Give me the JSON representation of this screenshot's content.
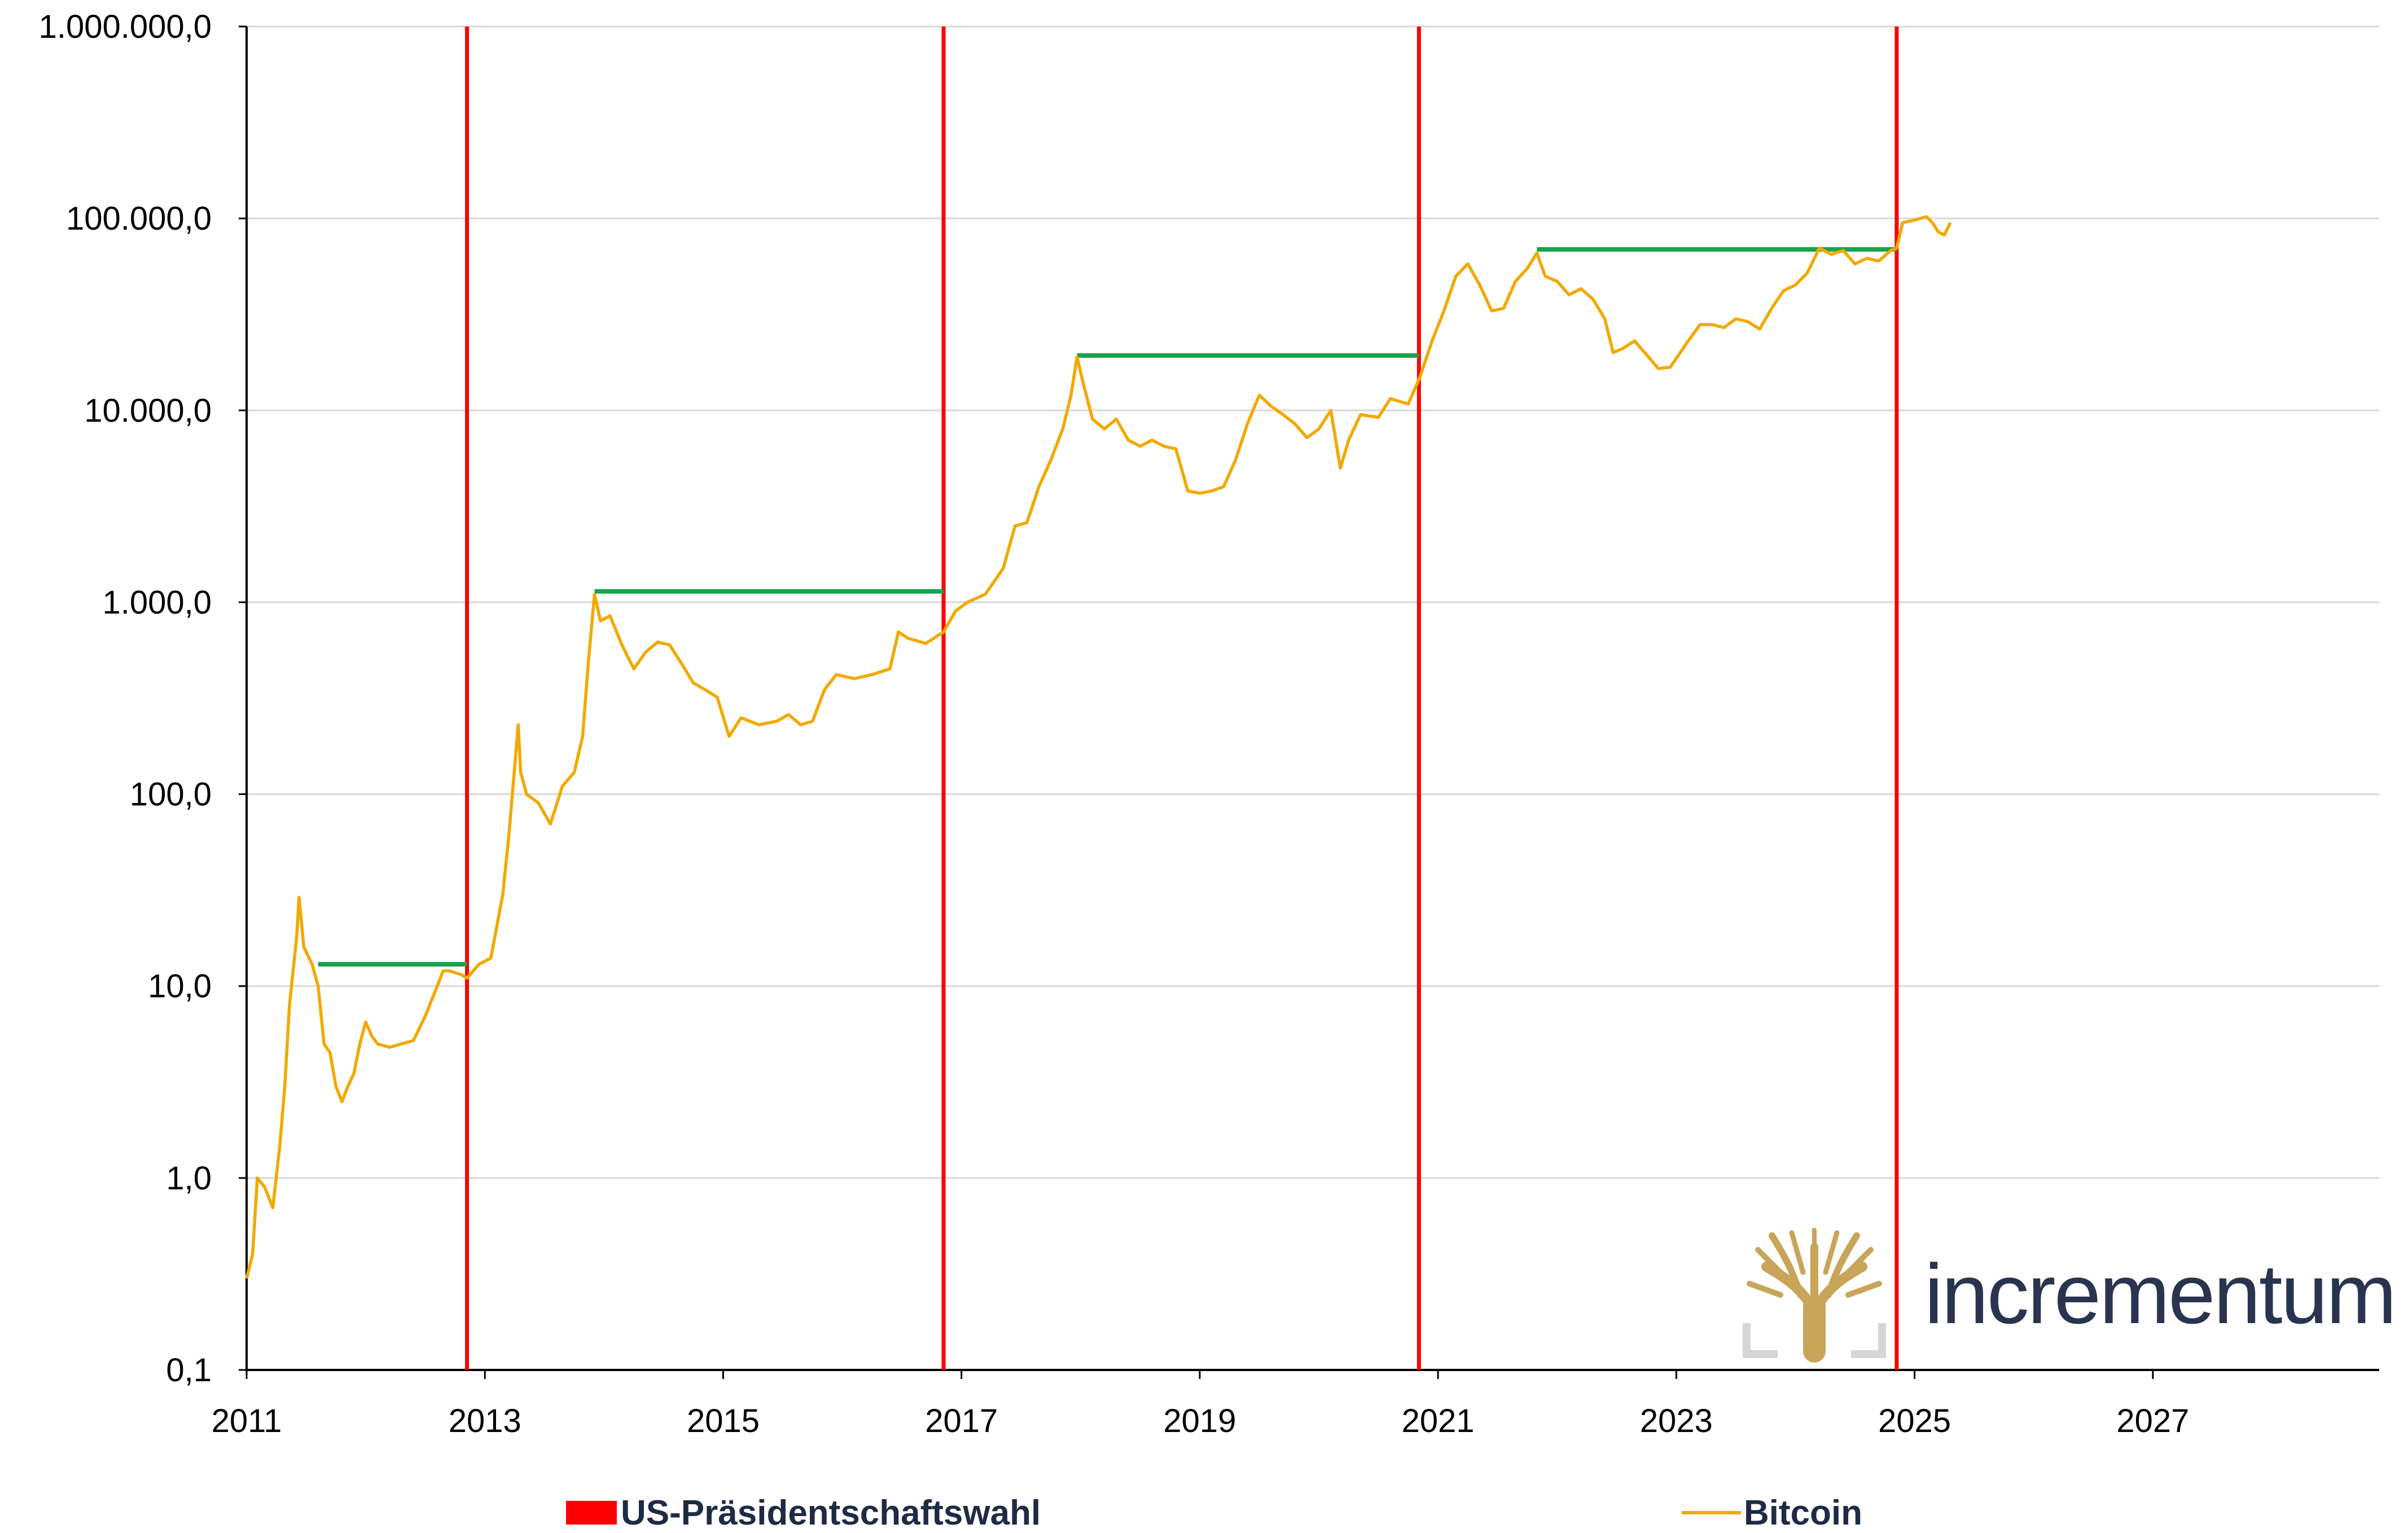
{
  "chart_data": {
    "type": "line",
    "y_scale": "log",
    "ylim": [
      0.1,
      1000000
    ],
    "xlim": [
      2011.0,
      2028.9
    ],
    "y_ticks": [
      {
        "value": 0.1,
        "label": "0,1"
      },
      {
        "value": 1,
        "label": "1,0"
      },
      {
        "value": 10,
        "label": "10,0"
      },
      {
        "value": 100,
        "label": "100,0"
      },
      {
        "value": 1000,
        "label": "1.000,0"
      },
      {
        "value": 10000,
        "label": "10.000,0"
      },
      {
        "value": 100000,
        "label": "100.000,0"
      },
      {
        "value": 1000000,
        "label": "1.000.000,0"
      }
    ],
    "x_ticks": [
      {
        "value": 2011,
        "label": "2011"
      },
      {
        "value": 2013,
        "label": "2013"
      },
      {
        "value": 2015,
        "label": "2015"
      },
      {
        "value": 2017,
        "label": "2017"
      },
      {
        "value": 2019,
        "label": "2019"
      },
      {
        "value": 2021,
        "label": "2021"
      },
      {
        "value": 2023,
        "label": "2023"
      },
      {
        "value": 2025,
        "label": "2025"
      },
      {
        "value": 2027,
        "label": "2027"
      }
    ],
    "grid": "horizontal",
    "series": [
      {
        "name": "Bitcoin",
        "color": "#f2a900",
        "points": [
          [
            2011.0,
            0.3
          ],
          [
            2011.05,
            0.4
          ],
          [
            2011.09,
            1.0
          ],
          [
            2011.15,
            0.9
          ],
          [
            2011.22,
            0.7
          ],
          [
            2011.28,
            1.5
          ],
          [
            2011.32,
            3.0
          ],
          [
            2011.36,
            8.0
          ],
          [
            2011.42,
            18.0
          ],
          [
            2011.44,
            29.0
          ],
          [
            2011.48,
            16.0
          ],
          [
            2011.55,
            13.0
          ],
          [
            2011.6,
            10.0
          ],
          [
            2011.65,
            5.0
          ],
          [
            2011.7,
            4.5
          ],
          [
            2011.75,
            3.0
          ],
          [
            2011.8,
            2.5
          ],
          [
            2011.85,
            3.0
          ],
          [
            2011.9,
            3.5
          ],
          [
            2011.95,
            5.0
          ],
          [
            2012.0,
            6.5
          ],
          [
            2012.05,
            5.5
          ],
          [
            2012.1,
            5.0
          ],
          [
            2012.2,
            4.8
          ],
          [
            2012.3,
            5.0
          ],
          [
            2012.4,
            5.2
          ],
          [
            2012.5,
            7.0
          ],
          [
            2012.6,
            10.0
          ],
          [
            2012.65,
            12.0
          ],
          [
            2012.7,
            12.0
          ],
          [
            2012.8,
            11.5
          ],
          [
            2012.85,
            11.0
          ],
          [
            2012.95,
            13.0
          ],
          [
            2013.05,
            14.0
          ],
          [
            2013.15,
            30.0
          ],
          [
            2013.2,
            60.0
          ],
          [
            2013.28,
            230.0
          ],
          [
            2013.3,
            130.0
          ],
          [
            2013.35,
            100.0
          ],
          [
            2013.45,
            90.0
          ],
          [
            2013.55,
            70.0
          ],
          [
            2013.65,
            110.0
          ],
          [
            2013.75,
            130.0
          ],
          [
            2013.82,
            200.0
          ],
          [
            2013.87,
            500.0
          ],
          [
            2013.92,
            1100.0
          ],
          [
            2013.97,
            800.0
          ],
          [
            2014.05,
            850.0
          ],
          [
            2014.15,
            600.0
          ],
          [
            2014.25,
            450.0
          ],
          [
            2014.35,
            550.0
          ],
          [
            2014.45,
            620.0
          ],
          [
            2014.55,
            600.0
          ],
          [
            2014.65,
            480.0
          ],
          [
            2014.75,
            380.0
          ],
          [
            2014.85,
            350.0
          ],
          [
            2014.95,
            320.0
          ],
          [
            2015.05,
            200.0
          ],
          [
            2015.15,
            250.0
          ],
          [
            2015.3,
            230.0
          ],
          [
            2015.45,
            240.0
          ],
          [
            2015.55,
            260.0
          ],
          [
            2015.65,
            230.0
          ],
          [
            2015.75,
            240.0
          ],
          [
            2015.85,
            350.0
          ],
          [
            2015.95,
            420.0
          ],
          [
            2016.1,
            400.0
          ],
          [
            2016.25,
            420.0
          ],
          [
            2016.4,
            450.0
          ],
          [
            2016.47,
            700.0
          ],
          [
            2016.55,
            650.0
          ],
          [
            2016.7,
            610.0
          ],
          [
            2016.85,
            700.0
          ],
          [
            2016.95,
            900.0
          ],
          [
            2017.05,
            1000.0
          ],
          [
            2017.2,
            1100.0
          ],
          [
            2017.35,
            1500.0
          ],
          [
            2017.45,
            2500.0
          ],
          [
            2017.55,
            2600.0
          ],
          [
            2017.65,
            4000.0
          ],
          [
            2017.75,
            5500.0
          ],
          [
            2017.85,
            8000.0
          ],
          [
            2017.92,
            12000.0
          ],
          [
            2017.97,
            19000.0
          ],
          [
            2018.02,
            14000.0
          ],
          [
            2018.1,
            9000.0
          ],
          [
            2018.2,
            8000.0
          ],
          [
            2018.3,
            9000.0
          ],
          [
            2018.4,
            7000.0
          ],
          [
            2018.5,
            6500.0
          ],
          [
            2018.6,
            7000.0
          ],
          [
            2018.7,
            6500.0
          ],
          [
            2018.8,
            6300.0
          ],
          [
            2018.9,
            3800.0
          ],
          [
            2019.0,
            3700.0
          ],
          [
            2019.1,
            3800.0
          ],
          [
            2019.2,
            4000.0
          ],
          [
            2019.3,
            5500.0
          ],
          [
            2019.4,
            8500.0
          ],
          [
            2019.5,
            12000.0
          ],
          [
            2019.6,
            10500.0
          ],
          [
            2019.7,
            9500.0
          ],
          [
            2019.8,
            8500.0
          ],
          [
            2019.9,
            7200.0
          ],
          [
            2020.0,
            8000.0
          ],
          [
            2020.1,
            10000.0
          ],
          [
            2020.18,
            5000.0
          ],
          [
            2020.25,
            7000.0
          ],
          [
            2020.35,
            9500.0
          ],
          [
            2020.5,
            9200.0
          ],
          [
            2020.6,
            11500.0
          ],
          [
            2020.75,
            10800.0
          ],
          [
            2020.85,
            15000.0
          ],
          [
            2020.95,
            23000.0
          ],
          [
            2021.05,
            33000.0
          ],
          [
            2021.15,
            50000.0
          ],
          [
            2021.25,
            58000.0
          ],
          [
            2021.35,
            45000.0
          ],
          [
            2021.45,
            33000.0
          ],
          [
            2021.55,
            34000.0
          ],
          [
            2021.65,
            47000.0
          ],
          [
            2021.75,
            55000.0
          ],
          [
            2021.83,
            66000.0
          ],
          [
            2021.9,
            50000.0
          ],
          [
            2022.0,
            47000.0
          ],
          [
            2022.1,
            40000.0
          ],
          [
            2022.2,
            43000.0
          ],
          [
            2022.3,
            38000.0
          ],
          [
            2022.4,
            30000.0
          ],
          [
            2022.47,
            20000.0
          ],
          [
            2022.55,
            21000.0
          ],
          [
            2022.65,
            23000.0
          ],
          [
            2022.75,
            19500.0
          ],
          [
            2022.85,
            16500.0
          ],
          [
            2022.95,
            16800.0
          ],
          [
            2023.1,
            23000.0
          ],
          [
            2023.2,
            28000.0
          ],
          [
            2023.3,
            28000.0
          ],
          [
            2023.4,
            27000.0
          ],
          [
            2023.5,
            30000.0
          ],
          [
            2023.6,
            29000.0
          ],
          [
            2023.7,
            26500.0
          ],
          [
            2023.8,
            34000.0
          ],
          [
            2023.9,
            42000.0
          ],
          [
            2024.0,
            45000.0
          ],
          [
            2024.1,
            52000.0
          ],
          [
            2024.2,
            70000.0
          ],
          [
            2024.3,
            65000.0
          ],
          [
            2024.4,
            68000.0
          ],
          [
            2024.5,
            58000.0
          ],
          [
            2024.6,
            62000.0
          ],
          [
            2024.7,
            60000.0
          ],
          [
            2024.8,
            68000.0
          ],
          [
            2024.85,
            70000.0
          ],
          [
            2024.9,
            95000.0
          ],
          [
            2024.97,
            97000.0
          ],
          [
            2025.05,
            100000.0
          ],
          [
            2025.1,
            102000.0
          ],
          [
            2025.15,
            95000.0
          ],
          [
            2025.2,
            85000.0
          ],
          [
            2025.25,
            82000.0
          ],
          [
            2025.3,
            95000.0
          ]
        ]
      }
    ],
    "markers": [
      {
        "name": "US-Präsidentschaftswahl",
        "color": "#ff0000",
        "x": [
          2012.85,
          2016.85,
          2020.84,
          2024.85
        ]
      }
    ],
    "previous_high_lines": {
      "color": "#1aa34a",
      "segments": [
        {
          "x_start": 2011.6,
          "x_end": 2012.85,
          "y": 13.0
        },
        {
          "x_start": 2013.92,
          "x_end": 2016.85,
          "y": 1140.0
        },
        {
          "x_start": 2017.97,
          "x_end": 2020.84,
          "y": 19300.0
        },
        {
          "x_start": 2021.83,
          "x_end": 2024.85,
          "y": 69000.0
        }
      ]
    },
    "legend": {
      "placement": "bottom",
      "items": [
        {
          "label": "US-Präsidentschaftswahl",
          "color": "#ff0000",
          "style": "box"
        },
        {
          "label": "Bitcoin",
          "color": "#f2a900",
          "style": "line"
        }
      ]
    }
  },
  "brand": {
    "name": "incrementum",
    "logo_icon": "tree-icon",
    "logo_color": "#c9a55a",
    "text_color": "#2a3450"
  }
}
